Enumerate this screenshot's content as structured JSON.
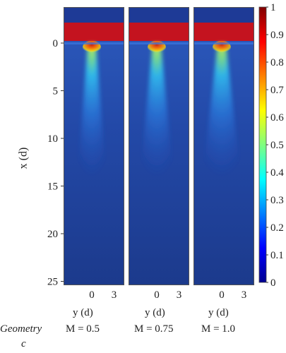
{
  "chart_data": {
    "type": "heatmap",
    "ylabel": "x (d)",
    "y_ticks": [
      0,
      5,
      10,
      15,
      20,
      25
    ],
    "x_ticks": [
      0,
      3
    ],
    "xlabel": "y (d)",
    "ylim": [
      25,
      -2.7
    ],
    "xlim": [
      -2.5,
      3
    ],
    "colorbar": {
      "ticks": [
        0,
        0.1,
        0.2,
        0.3,
        0.4,
        0.5,
        0.6,
        0.7,
        0.8,
        0.9,
        1
      ],
      "tick_labels": [
        "0",
        "0.1",
        "0.2",
        "0.3",
        "0.4",
        "0.5",
        "0.6",
        "0.7",
        "0.8",
        "0.9",
        "1"
      ],
      "range": [
        0,
        1
      ],
      "colormap": "jet"
    },
    "panels": [
      {
        "label": "M = 0.5",
        "peak_value": 0.92,
        "jet_halfwidth_at_5d": 1.2
      },
      {
        "label": "M = 0.75",
        "peak_value": 0.88,
        "jet_halfwidth_at_5d": 1.4
      },
      {
        "label": "M = 1.0",
        "peak_value": 0.85,
        "jet_halfwidth_at_5d": 1.6
      }
    ]
  },
  "caption": {
    "geometry_label": "Geometry",
    "geometry_letter": "c"
  },
  "colors": {
    "background_field": "#1c3a8c",
    "top_band": "#c4131f",
    "frame": "#555555"
  }
}
